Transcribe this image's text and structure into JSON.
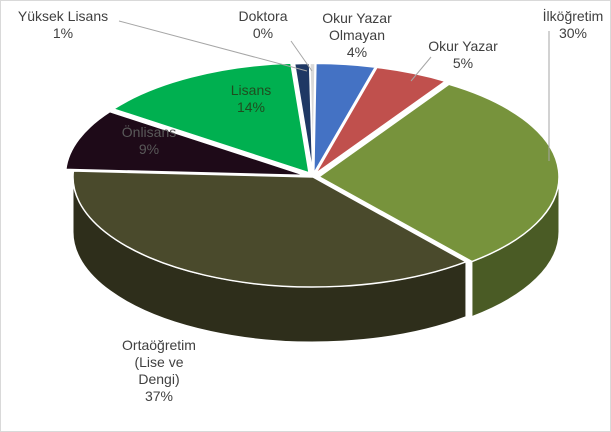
{
  "chart_data": {
    "type": "pie",
    "title": "",
    "categories": [
      "Okur Yazar Olmayan",
      "Okur Yazar",
      "İlköğretim",
      "Ortaöğretim (Lise ve Dengi)",
      "Önlisans",
      "Lisans",
      "Yüksek Lisans",
      "Doktora"
    ],
    "values": [
      4,
      5,
      30,
      37,
      9,
      14,
      1,
      0
    ],
    "labels": [
      {
        "lines": [
          "Okur Yazar",
          "Olmayan",
          "4%"
        ]
      },
      {
        "lines": [
          "Okur Yazar",
          "5%"
        ]
      },
      {
        "lines": [
          "İlköğretim",
          "30%"
        ]
      },
      {
        "lines": [
          "Ortaöğretim",
          "(Lise ve",
          "Dengi)",
          "37%"
        ]
      },
      {
        "lines": [
          "Önlisans",
          "9%"
        ]
      },
      {
        "lines": [
          "Lisans",
          "14%"
        ]
      },
      {
        "lines": [
          "Yüksek Lisans",
          "1%"
        ]
      },
      {
        "lines": [
          "Doktora",
          "0%"
        ]
      }
    ],
    "colors": [
      "#4472C4",
      "#C0504D",
      "#77933C",
      "#4A4A2C",
      "#1E0A18",
      "#00B050",
      "#1F3864",
      "#D9D9D9"
    ],
    "label_colors": [
      "#404040",
      "#404040",
      "#404040",
      "#404040",
      "#595959",
      "#1F4D1F",
      "#404040",
      "#404040"
    ],
    "style": "3d-exploded",
    "legend": "none"
  }
}
